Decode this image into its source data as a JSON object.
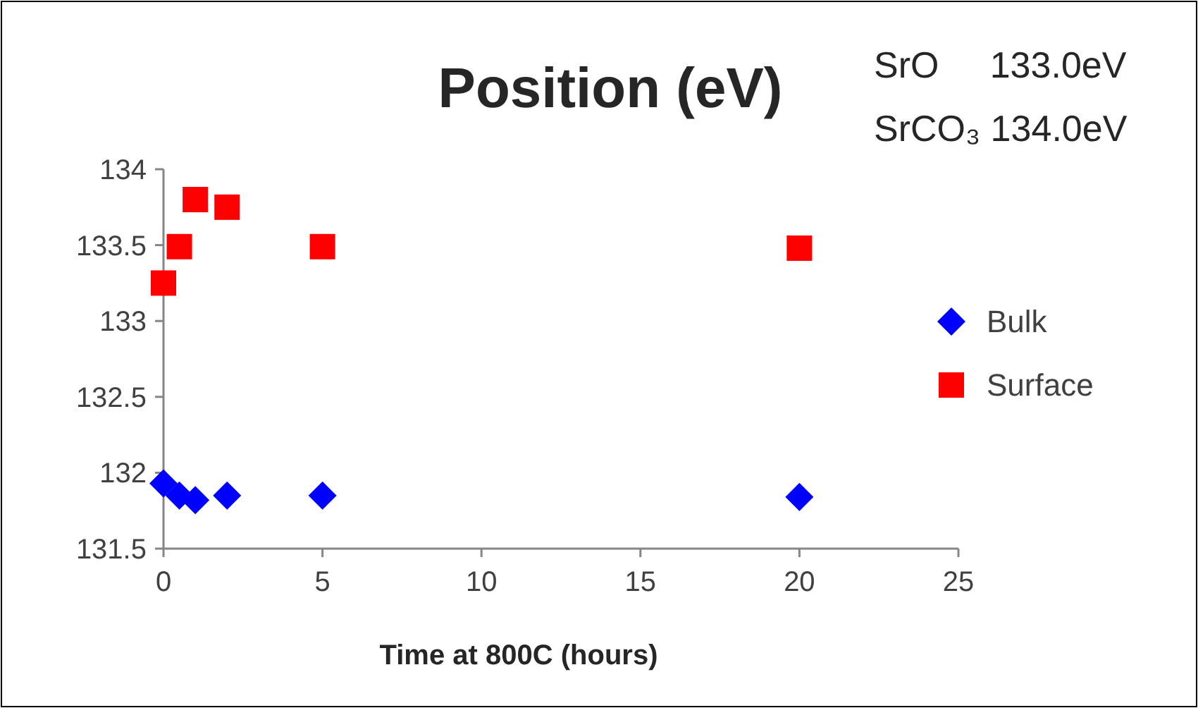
{
  "chart_data": {
    "type": "scatter",
    "title": "Position (eV)",
    "xlabel": "Time at 800C (hours)",
    "annotations": [
      "SrO     133.0eV",
      "SrCO₃ 134.0eV"
    ],
    "xlim": [
      0,
      25
    ],
    "xticks": [
      0,
      5,
      10,
      15,
      20,
      25
    ],
    "ylim": [
      131.5,
      134
    ],
    "yticks": [
      131.5,
      132,
      132.5,
      133,
      133.5,
      134
    ],
    "grid": false,
    "legend": "right",
    "series": [
      {
        "name": "Bulk",
        "color": "#0000ff",
        "marker": "diamond",
        "x": [
          0,
          0.5,
          1,
          2,
          5,
          20
        ],
        "values": [
          131.93,
          131.85,
          131.82,
          131.85,
          131.85,
          131.84
        ]
      },
      {
        "name": "Surface",
        "color": "#ff0000",
        "marker": "square",
        "x": [
          0,
          0.5,
          1,
          2,
          5,
          20
        ],
        "values": [
          133.25,
          133.49,
          133.8,
          133.75,
          133.49,
          133.48
        ]
      }
    ]
  }
}
